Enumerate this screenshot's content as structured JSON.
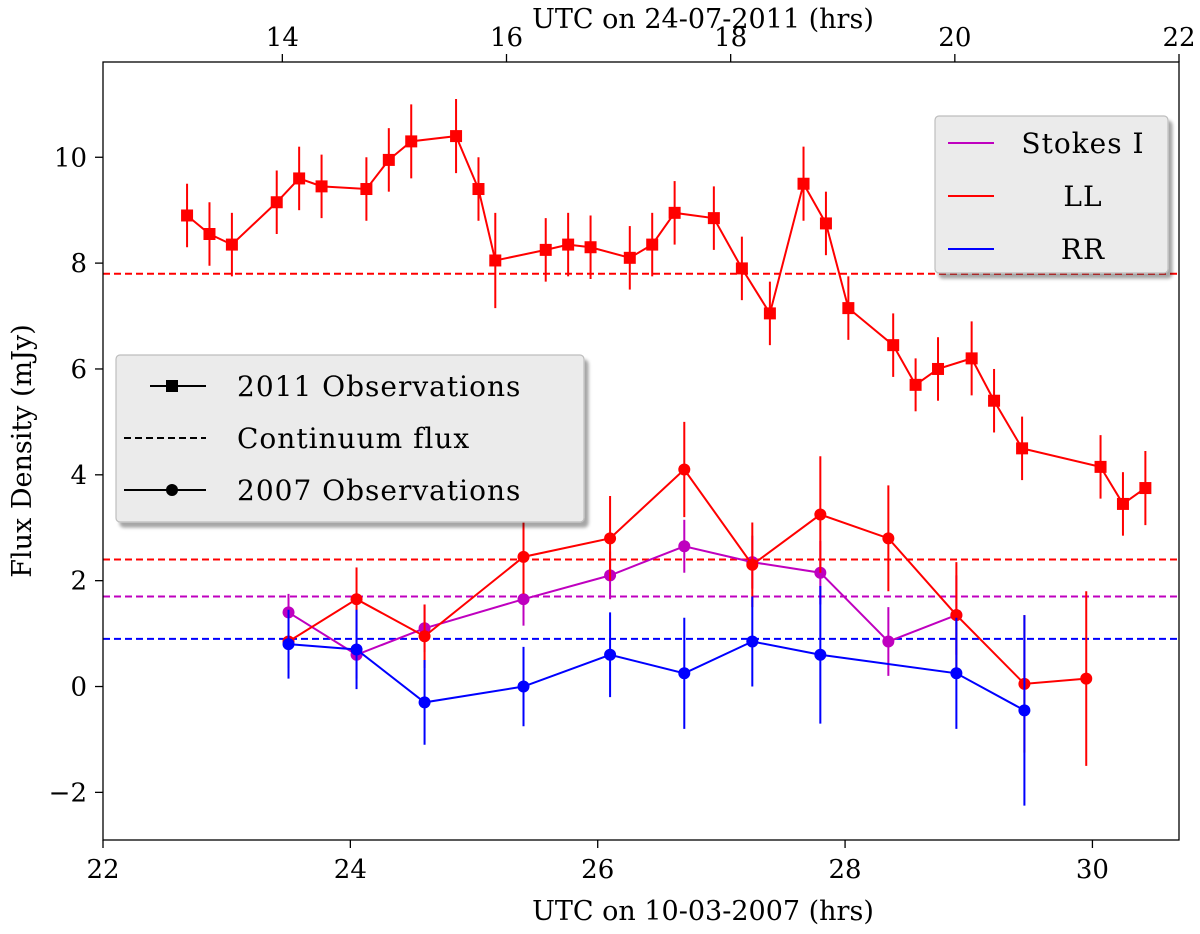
{
  "chart_data": {
    "type": "line",
    "bottom_axis": {
      "label": "UTC on 10-03-2007 (hrs)",
      "range": [
        22,
        30.7
      ],
      "ticks": [
        22,
        24,
        26,
        28,
        30
      ],
      "tick_labels": [
        "22",
        "24",
        "26",
        "28",
        "30"
      ]
    },
    "top_axis": {
      "label": "UTC on 24-07-2011 (hrs)",
      "range": [
        12.4,
        22.0
      ],
      "ticks": [
        14,
        16,
        18,
        20,
        22
      ],
      "tick_labels": [
        "14",
        "16",
        "18",
        "20",
        "22"
      ]
    },
    "y_axis": {
      "label": "Flux Density (mJy)",
      "range": [
        -2.9,
        11.8
      ],
      "ticks": [
        -2,
        0,
        2,
        4,
        6,
        8,
        10
      ],
      "tick_labels": [
        "−2",
        "0",
        "2",
        "4",
        "6",
        "8",
        "10"
      ]
    },
    "colors": {
      "stokes_i": "#bf00bf",
      "ll": "#ff0000",
      "rr": "#0000ff",
      "black": "#000000"
    },
    "series_2011": [
      {
        "name": "LL",
        "color_key": "ll",
        "axis": "top",
        "marker": "square",
        "x": [
          13.15,
          13.35,
          13.55,
          13.95,
          14.15,
          14.35,
          14.75,
          14.95,
          15.15,
          15.55,
          15.75,
          15.9,
          16.35,
          16.55,
          16.75,
          17.1,
          17.3,
          17.5,
          17.85,
          18.1,
          18.35,
          18.65,
          18.85,
          19.05,
          19.45,
          19.65,
          19.85,
          20.15,
          20.35,
          20.6,
          21.3,
          21.5,
          21.7
        ],
        "y": [
          8.9,
          8.55,
          8.35,
          9.15,
          9.6,
          9.45,
          9.4,
          9.95,
          10.3,
          10.4,
          9.4,
          8.05,
          8.25,
          8.35,
          8.3,
          8.1,
          8.35,
          8.95,
          8.85,
          7.9,
          7.05,
          9.5,
          8.75,
          7.15,
          6.45,
          5.7,
          6.0,
          6.2,
          5.4,
          4.5,
          4.15,
          3.45,
          3.75
        ],
        "err": [
          0.6,
          0.6,
          0.6,
          0.6,
          0.6,
          0.6,
          0.6,
          0.6,
          0.7,
          0.7,
          0.6,
          0.9,
          0.6,
          0.6,
          0.6,
          0.6,
          0.6,
          0.6,
          0.6,
          0.6,
          0.6,
          0.7,
          0.6,
          0.6,
          0.6,
          0.5,
          0.6,
          0.7,
          0.6,
          0.6,
          0.6,
          0.6,
          0.7
        ]
      }
    ],
    "series_2007": [
      {
        "name": "Stokes I",
        "color_key": "stokes_i",
        "axis": "bottom",
        "marker": "circle",
        "x": [
          23.5,
          24.05,
          24.6,
          25.4,
          26.1,
          26.7,
          27.25,
          27.8,
          28.35,
          28.9
        ],
        "y": [
          1.4,
          0.6,
          1.1,
          1.65,
          2.1,
          2.65,
          2.35,
          2.15,
          0.85,
          1.35
        ],
        "err": [
          0.35,
          0.45,
          0.45,
          0.5,
          0.45,
          0.5,
          0.5,
          0.6,
          0.65,
          0.75
        ]
      },
      {
        "name": "LL",
        "color_key": "ll",
        "axis": "bottom",
        "marker": "circle",
        "x": [
          23.5,
          24.05,
          24.6,
          25.4,
          26.1,
          26.7,
          27.25,
          27.8,
          28.35,
          28.9,
          29.45,
          29.95
        ],
        "y": [
          0.85,
          1.65,
          0.95,
          2.45,
          2.8,
          4.1,
          2.3,
          3.25,
          2.8,
          1.35,
          0.05,
          0.15
        ],
        "err": [
          0.5,
          0.6,
          0.6,
          0.7,
          0.8,
          0.9,
          0.8,
          1.1,
          1.0,
          1.0,
          1.3,
          1.65
        ]
      },
      {
        "name": "RR",
        "color_key": "rr",
        "axis": "bottom",
        "marker": "circle",
        "x": [
          23.5,
          24.05,
          24.6,
          25.4,
          26.1,
          26.7,
          27.25,
          27.8,
          28.9,
          29.45
        ],
        "y": [
          0.8,
          0.7,
          -0.3,
          0.0,
          0.6,
          0.25,
          0.85,
          0.6,
          0.25,
          -0.45
        ],
        "err": [
          0.65,
          0.75,
          0.8,
          0.75,
          0.8,
          1.05,
          0.85,
          1.3,
          1.05,
          1.8
        ]
      }
    ],
    "continuum": [
      {
        "name": "LL continuum 2011",
        "color_key": "ll",
        "y": 7.8
      },
      {
        "name": "LL continuum 2007",
        "color_key": "ll",
        "y": 2.4
      },
      {
        "name": "Stokes I continuum",
        "color_key": "stokes_i",
        "y": 1.7
      },
      {
        "name": "RR continuum",
        "color_key": "rr",
        "y": 0.9
      }
    ],
    "legend_pol": {
      "placement": "top-right",
      "entries": [
        {
          "label": "Stokes I",
          "color_key": "stokes_i"
        },
        {
          "label": "LL",
          "color_key": "ll"
        },
        {
          "label": "RR",
          "color_key": "rr"
        }
      ]
    },
    "legend_obs": {
      "placement": "center-left",
      "entries": [
        {
          "label": "2011 Observations",
          "style": "square-marker"
        },
        {
          "label": "Continuum flux",
          "style": "dashed"
        },
        {
          "label": "2007 Observations",
          "style": "circle-marker"
        }
      ]
    }
  }
}
